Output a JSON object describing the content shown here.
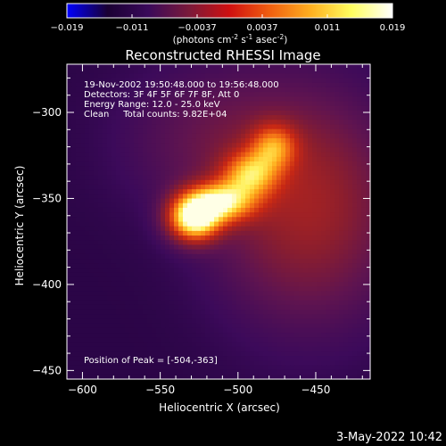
{
  "colorbar": {
    "ticks": [
      "-0.019",
      "-0.011",
      "-0.0037",
      "0.0037",
      "0.011",
      "0.019"
    ],
    "units": "(photons cm",
    "units_exp1": "-2",
    "units_mid": " s",
    "units_exp2": "-1",
    "units_mid2": " asec",
    "units_exp3": "-2",
    "units_end": ")",
    "colors": [
      "#0000ff",
      "#1a0033",
      "#3a0a5a",
      "#7a1a3a",
      "#d01010",
      "#f06010",
      "#ffb020",
      "#ffff60",
      "#ffffff"
    ]
  },
  "annotation": {
    "line1": "19-Nov-2002 19:50:48.000 to 19:56:48.000",
    "line2": "Detectors: 3F 4F 5F 6F 7F 8F, Att 0",
    "line3": "Energy Range: 12.0 - 25.0 keV",
    "line4": "Clean     Total counts: 9.82E+04",
    "peak": "Position of Peak = [-504,-363]"
  },
  "footer": {
    "date": "3-May-2022 10:42"
  },
  "chart_data": {
    "type": "heatmap",
    "title": "Reconstructed RHESSI Image",
    "xlabel": "Heliocentric X (arcsec)",
    "ylabel": "Heliocentric Y (arcsec)",
    "xlim": [
      -610,
      -415
    ],
    "ylim": [
      -455,
      -272
    ],
    "xticks": [
      -600,
      -550,
      -500,
      -450
    ],
    "yticks": [
      -300,
      -350,
      -400,
      -450
    ],
    "xtick_labels": [
      "-600",
      "-550",
      "-500",
      "-450"
    ],
    "ytick_labels": [
      "-300",
      "-350",
      "-400",
      "-450"
    ],
    "colorbar_range": [
      -0.019,
      0.019
    ],
    "peak": {
      "x": -504,
      "y": -363
    },
    "sources": [
      {
        "x": -528,
        "y": -361,
        "sx": 11,
        "sy": 9,
        "amp": 1.0
      },
      {
        "x": -510,
        "y": -352,
        "sx": 14,
        "sy": 8,
        "amp": 0.7
      },
      {
        "x": -492,
        "y": -336,
        "sx": 12,
        "sy": 9,
        "amp": 0.55
      },
      {
        "x": -477,
        "y": -320,
        "sx": 10,
        "sy": 9,
        "amp": 0.45
      }
    ],
    "background": [
      {
        "x": -455,
        "y": -355,
        "sx": 40,
        "sy": 45,
        "amp": 0.3
      },
      {
        "x": -520,
        "y": -315,
        "sx": 40,
        "sy": 30,
        "amp": 0.12
      }
    ]
  }
}
